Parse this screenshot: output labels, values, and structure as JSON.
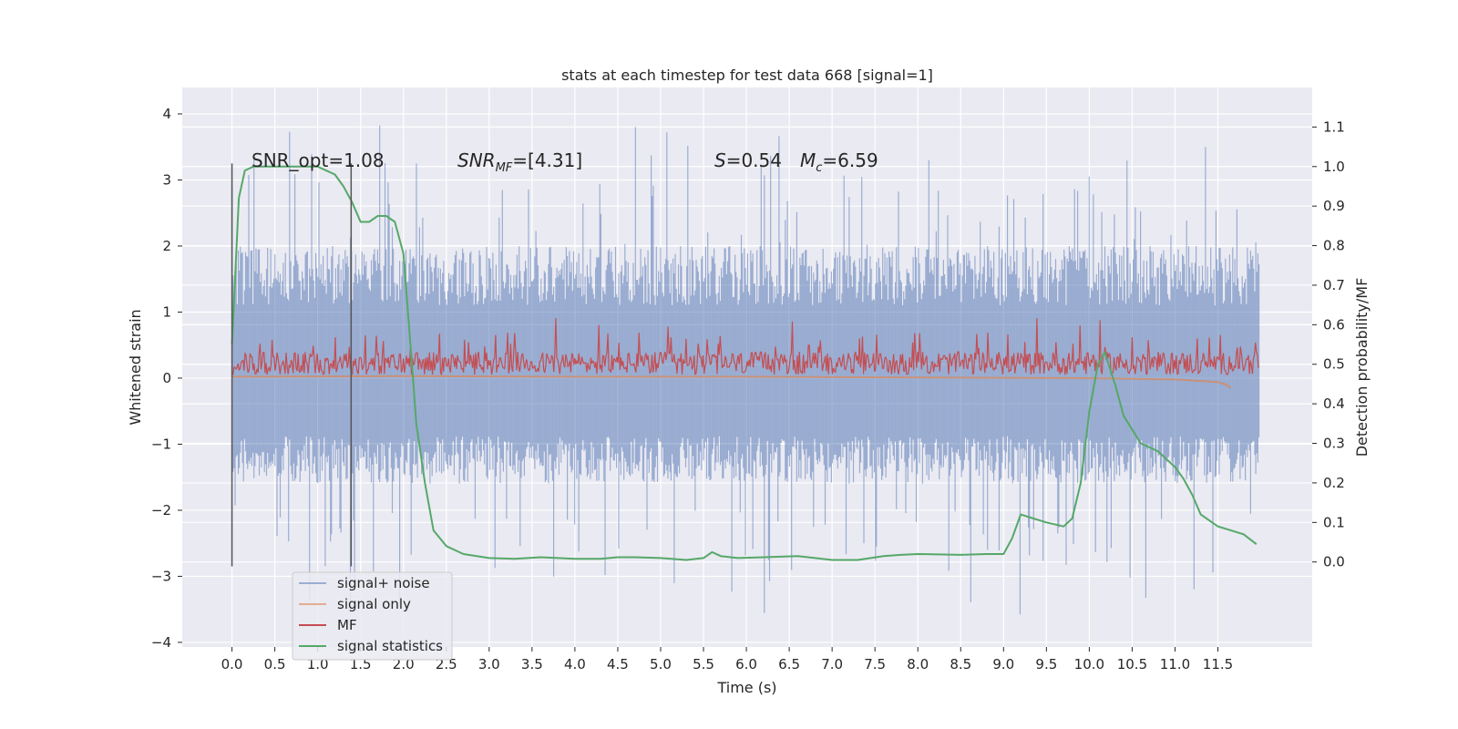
{
  "chart_data": {
    "type": "line",
    "title": "stats at each timestep for test data 668 [signal=1]",
    "xlabel": "Time (s)",
    "ylabel_left": "Whitened strain",
    "ylabel_right": "Detection probability/MF",
    "xlim": [
      -0.58,
      12.6
    ],
    "ylim_left": [
      -4.07,
      4.4
    ],
    "ylim_right": [
      -0.215,
      1.2
    ],
    "x_ticks": [
      "0.0",
      "0.5",
      "1.0",
      "1.5",
      "2.0",
      "2.5",
      "3.0",
      "3.5",
      "4.0",
      "4.5",
      "5.0",
      "5.5",
      "6.0",
      "6.5",
      "7.0",
      "7.5",
      "8.0",
      "8.5",
      "9.0",
      "9.5",
      "10.0",
      "10.5",
      "11.0",
      "11.5"
    ],
    "y_ticks_left": [
      "−4",
      "−3",
      "−2",
      "−1",
      "0",
      "1",
      "2",
      "3",
      "4"
    ],
    "y_ticks_right": [
      "0.0",
      "0.1",
      "0.2",
      "0.3",
      "0.4",
      "0.5",
      "0.6",
      "0.7",
      "0.8",
      "0.9",
      "1.0",
      "1.1"
    ],
    "grid": true,
    "background": "#eaeaf2",
    "legend_placement": "lower-left",
    "annotations": {
      "snr_opt": "SNR_opt=1.08",
      "snr_mf_main": "SNR",
      "snr_mf_sub": "MF",
      "snr_mf_value": "=[4.31]",
      "s_sym": "S",
      "s_value": "=0.54",
      "mc_sym": "M",
      "mc_sub": "c",
      "mc_value": "=6.59"
    },
    "vertical_markers": [
      0.0,
      1.39
    ],
    "series": [
      {
        "name": "signal+ noise",
        "color": "#4c72b0",
        "axis": "left",
        "x_range": [
          0.0,
          11.98
        ],
        "typical_envelope": [
          -1.6,
          2.0
        ],
        "extrema_min": -3.7,
        "extrema_max": 4.1
      },
      {
        "name": "signal only",
        "color": "#dd8452",
        "axis": "left",
        "x": [
          0.0,
          2.0,
          4.0,
          6.0,
          8.0,
          10.0,
          11.0,
          11.5,
          11.6,
          11.65
        ],
        "y": [
          0.02,
          0.03,
          0.02,
          0.02,
          0.01,
          0.0,
          -0.02,
          -0.06,
          -0.1,
          -0.15
        ]
      },
      {
        "name": "MF",
        "color": "#c44e52",
        "axis": "left",
        "x_range": [
          0.0,
          11.98
        ],
        "typical_range": [
          0.0,
          0.6
        ],
        "max": 1.0
      },
      {
        "name": "signal statistics",
        "color": "#55a868",
        "axis": "right",
        "x": [
          0.0,
          0.08,
          0.15,
          0.25,
          0.5,
          1.0,
          1.2,
          1.3,
          1.4,
          1.5,
          1.6,
          1.7,
          1.8,
          1.9,
          2.0,
          2.1,
          2.15,
          2.25,
          2.35,
          2.5,
          2.7,
          3.0,
          3.3,
          3.6,
          4.0,
          4.3,
          4.5,
          4.7,
          5.0,
          5.3,
          5.5,
          5.6,
          5.7,
          5.9,
          6.2,
          6.6,
          7.0,
          7.3,
          7.6,
          7.8,
          8.0,
          8.5,
          8.8,
          9.0,
          9.1,
          9.2,
          9.35,
          9.5,
          9.7,
          9.8,
          9.9,
          10.0,
          10.1,
          10.18,
          10.3,
          10.4,
          10.6,
          10.8,
          11.0,
          11.1,
          11.2,
          11.3,
          11.5,
          11.8,
          11.95
        ],
        "y": [
          0.55,
          0.92,
          0.99,
          1.0,
          1.0,
          1.0,
          0.98,
          0.95,
          0.91,
          0.86,
          0.86,
          0.875,
          0.875,
          0.86,
          0.78,
          0.5,
          0.35,
          0.2,
          0.08,
          0.04,
          0.02,
          0.01,
          0.008,
          0.012,
          0.008,
          0.008,
          0.012,
          0.012,
          0.01,
          0.005,
          0.01,
          0.025,
          0.015,
          0.01,
          0.012,
          0.015,
          0.005,
          0.005,
          0.015,
          0.018,
          0.02,
          0.018,
          0.02,
          0.02,
          0.06,
          0.12,
          0.11,
          0.1,
          0.09,
          0.11,
          0.2,
          0.38,
          0.5,
          0.53,
          0.45,
          0.37,
          0.3,
          0.28,
          0.24,
          0.21,
          0.17,
          0.12,
          0.09,
          0.07,
          0.045
        ]
      }
    ]
  }
}
